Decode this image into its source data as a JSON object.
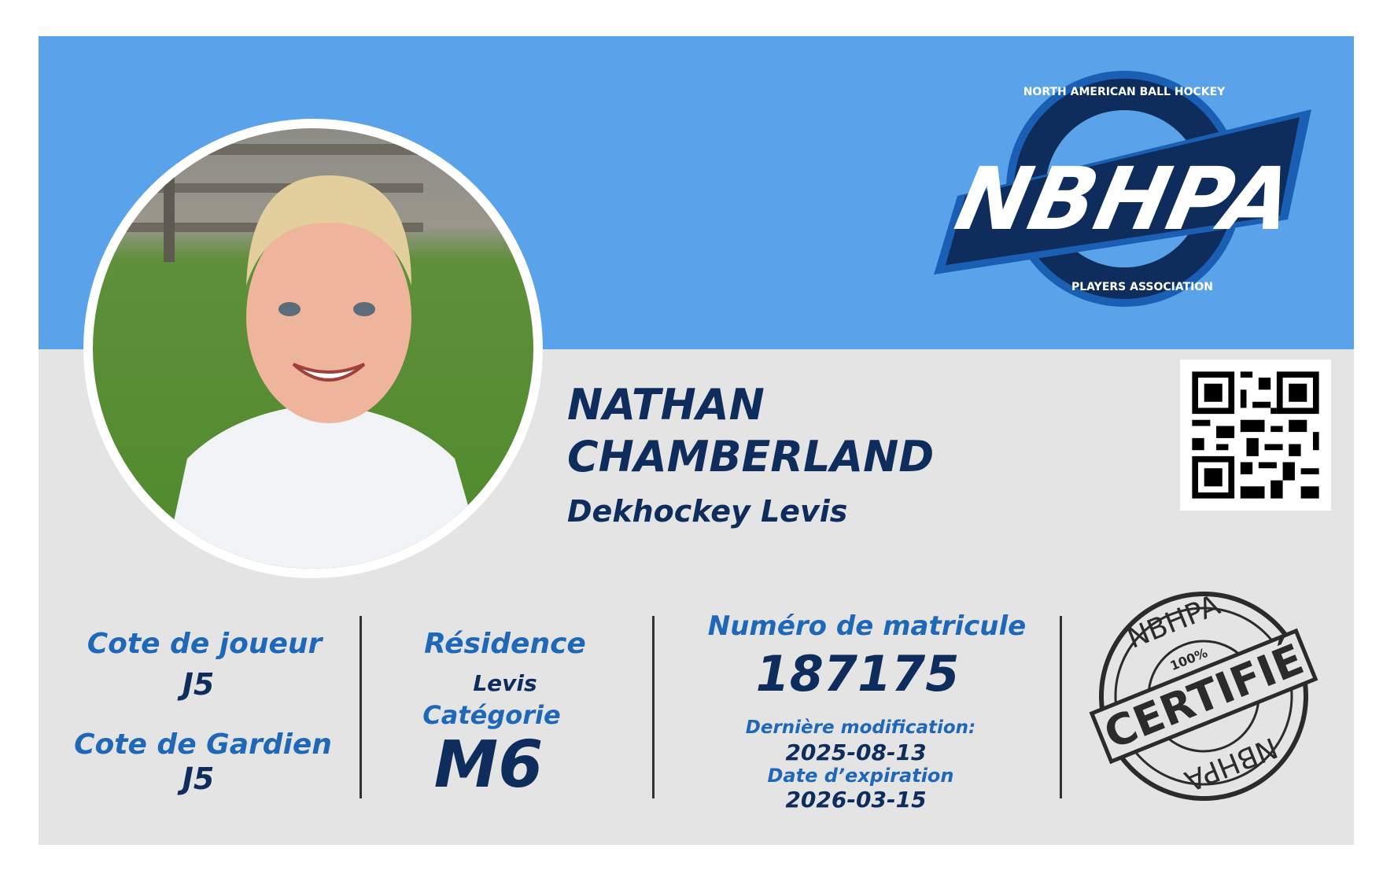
{
  "card": {
    "logo": {
      "text": "NBHPA",
      "top_arc": "NORTH AMERICAN BALL HOCKEY",
      "bottom_arc": "PLAYERS ASSOCIATION"
    },
    "player": {
      "first_name": "NATHAN",
      "last_name": "CHAMBERLAND",
      "team": "Dekhockey Levis"
    },
    "ratings": {
      "player_label": "Cote de joueur",
      "player_value": "J5",
      "goalie_label": "Cote de Gardien",
      "goalie_value": "J5"
    },
    "residence": {
      "label": "Résidence",
      "value": "Levis",
      "category_label": "Catégorie",
      "category_value": "M6"
    },
    "registration": {
      "label": "Numéro de matricule",
      "number": "187175",
      "modified_label": "Dernière modification:",
      "modified_value": "2025-08-13",
      "expiry_label": "Date d’expiration",
      "expiry_value": "2026-03-15"
    },
    "stamp": {
      "top": "NBHPA",
      "main": "CERTIFIÉ",
      "percent": "100%",
      "bottom": "NBHPA"
    },
    "colors": {
      "band": "#5aa2ea",
      "navy": "#0e2d5c",
      "label_blue": "#1f68b8",
      "card_bg": "#e4e4e4"
    }
  }
}
